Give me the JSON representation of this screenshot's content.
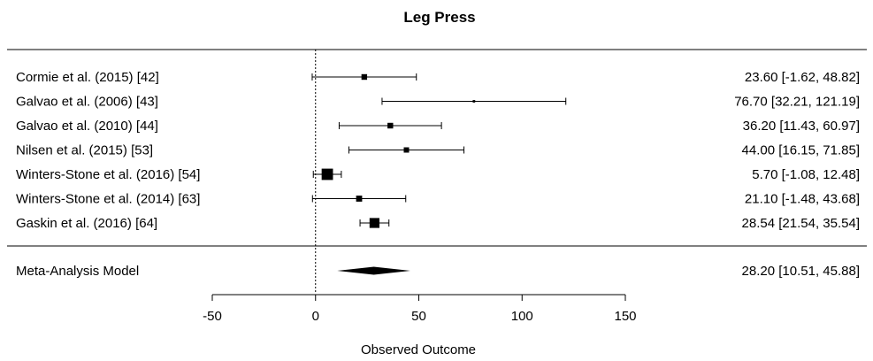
{
  "chart_data": {
    "type": "forest",
    "title": "Leg Press",
    "xlabel": "Observed Outcome",
    "xlim": [
      -50,
      150
    ],
    "xticks": [
      -50,
      0,
      50,
      100,
      150
    ],
    "reference_line": 0,
    "studies": [
      {
        "label": "Cormie et al. (2015) [42]",
        "estimate": 23.6,
        "lower": -1.62,
        "upper": 48.82,
        "text": "23.60 [-1.62,  48.82]",
        "weight": 0.8
      },
      {
        "label": "Galvao et al. (2006) [43]",
        "estimate": 76.7,
        "lower": 32.21,
        "upper": 121.19,
        "text": "76.70 [32.21, 121.19]",
        "weight": 0.35
      },
      {
        "label": "Galvao et al. (2010) [44]",
        "estimate": 36.2,
        "lower": 11.43,
        "upper": 60.97,
        "text": "36.20 [11.43,  60.97]",
        "weight": 0.8
      },
      {
        "label": "Nilsen et al. (2015) [53]",
        "estimate": 44.0,
        "lower": 16.15,
        "upper": 71.85,
        "text": "44.00 [16.15,  71.85]",
        "weight": 0.75
      },
      {
        "label": "Winters-Stone et al. (2016) [54]",
        "estimate": 5.7,
        "lower": -1.08,
        "upper": 12.48,
        "text": "5.70 [-1.08,  12.48]",
        "weight": 1.6
      },
      {
        "label": "Winters-Stone et al. (2014) [63]",
        "estimate": 21.1,
        "lower": -1.48,
        "upper": 43.68,
        "text": "21.10 [-1.48,  43.68]",
        "weight": 0.85
      },
      {
        "label": "Gaskin et al. (2016) [64]",
        "estimate": 28.54,
        "lower": 21.54,
        "upper": 35.54,
        "text": "28.54 [21.54,  35.54]",
        "weight": 1.4
      }
    ],
    "summary": {
      "label": "Meta-Analysis Model",
      "estimate": 28.2,
      "lower": 10.51,
      "upper": 45.88,
      "text": "28.20 [10.51,  45.88]"
    }
  }
}
